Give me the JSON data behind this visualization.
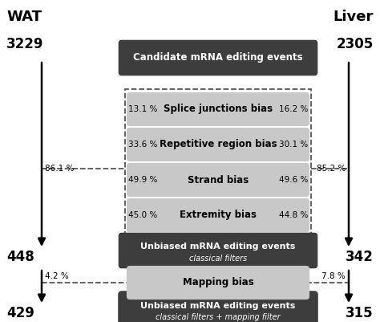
{
  "title_left": "WAT",
  "title_right": "Liver",
  "num_left_top": "3229",
  "num_right_top": "2305",
  "num_left_mid": "448",
  "num_right_mid": "342",
  "num_left_bot": "429",
  "num_right_bot": "315",
  "dark_boxes": [
    {
      "label": "Candidate mRNA editing events",
      "sublabel": ""
    },
    {
      "label": "Unbiased mRNA editing events",
      "sublabel": "classical filters"
    },
    {
      "label": "Unbiased mRNA editing events",
      "sublabel": "classical filters + mapping filter"
    }
  ],
  "light_boxes": [
    "Splice junctions bias",
    "Repetitive region bias",
    "Strand bias",
    "Extremity bias"
  ],
  "mapping_box": "Mapping bias",
  "pct_left_inner": [
    "13.1 %",
    "33.6 %",
    "49.9 %",
    "45.0 %"
  ],
  "pct_right_inner": [
    "16.2 %",
    "30.1 %",
    "49.6 %",
    "44.8 %"
  ],
  "pct_left_outer": "86.1 %",
  "pct_right_outer": "85.2 %",
  "pct_left_mapping": "4.2 %",
  "pct_right_mapping": "7.8 %",
  "dark_box_color": "#3d3d3d",
  "dark_box_text": "#ffffff",
  "light_box_color": "#c8c8c8",
  "light_box_text": "#000000",
  "arrow_color": "#000000",
  "dashed_color": "#555555",
  "bg_color": "#ffffff"
}
